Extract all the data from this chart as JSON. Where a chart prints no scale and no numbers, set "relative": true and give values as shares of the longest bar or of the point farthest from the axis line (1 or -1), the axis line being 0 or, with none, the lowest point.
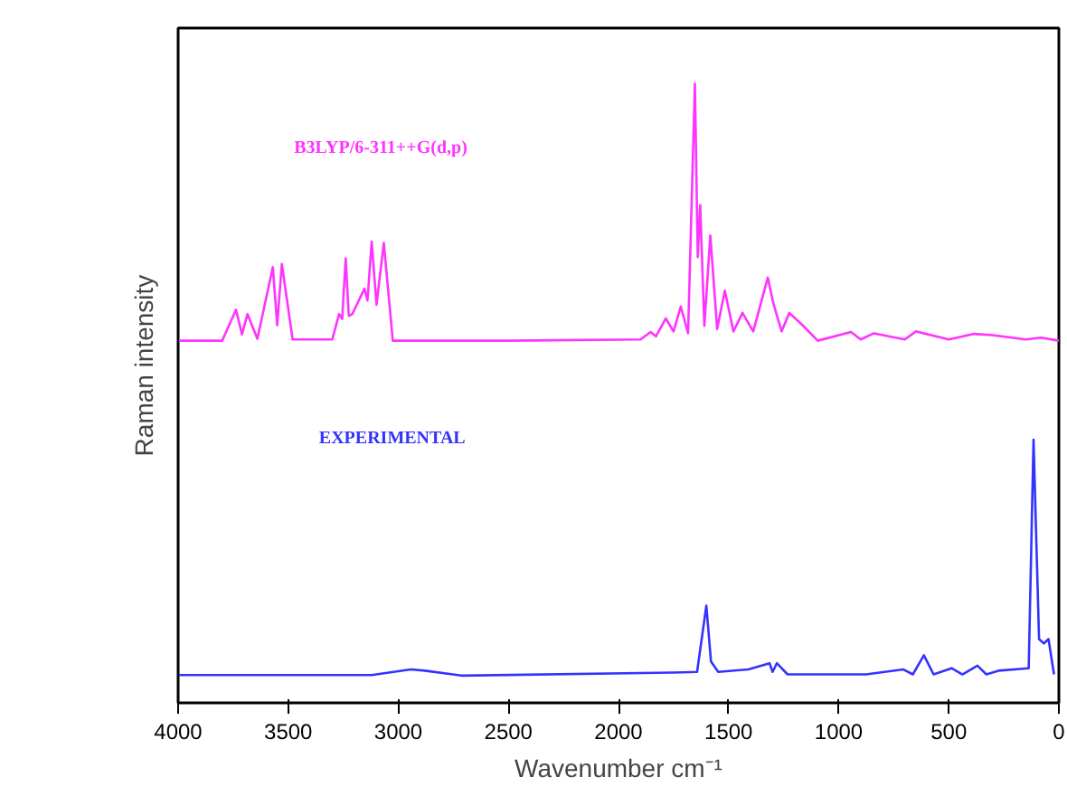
{
  "chart_data": {
    "type": "line",
    "xlabel": "Wavenumber cm⁻¹",
    "ylabel": "Raman intensity",
    "relative": true,
    "xlim": [
      4000,
      0
    ],
    "xticks": [
      4000,
      3500,
      3000,
      2500,
      2000,
      1500,
      1000,
      500,
      0
    ],
    "grid": false,
    "legend": false,
    "tick_labels": "x",
    "line_style": "solid",
    "marker": "none",
    "series": [
      {
        "name": "B3LYP/6-311++G(d,p)",
        "color": "#ff33ff",
        "x": [
          4000,
          3800,
          3737,
          3710,
          3685,
          3640,
          3570,
          3550,
          3529,
          3480,
          3300,
          3269,
          3255,
          3239,
          3225,
          3209,
          3154,
          3140,
          3121,
          3099,
          3066,
          3025,
          2500,
          1900,
          1854,
          1830,
          1785,
          1750,
          1717,
          1684,
          1653,
          1640,
          1629,
          1610,
          1583,
          1552,
          1517,
          1478,
          1437,
          1388,
          1322,
          1295,
          1259,
          1224,
          1164,
          1095,
          944,
          900,
          840,
          700,
          649,
          500,
          384,
          301,
          150,
          82,
          0
        ],
        "values": [
          0.585,
          0.585,
          0.635,
          0.595,
          0.628,
          0.588,
          0.704,
          0.61,
          0.709,
          0.587,
          0.587,
          0.628,
          0.62,
          0.718,
          0.625,
          0.628,
          0.669,
          0.65,
          0.745,
          0.643,
          0.743,
          0.585,
          0.585,
          0.587,
          0.599,
          0.592,
          0.621,
          0.6,
          0.64,
          0.597,
          1.0,
          0.72,
          0.804,
          0.609,
          0.755,
          0.604,
          0.666,
          0.6,
          0.63,
          0.6,
          0.687,
          0.643,
          0.6,
          0.63,
          0.61,
          0.585,
          0.599,
          0.587,
          0.597,
          0.587,
          0.6,
          0.587,
          0.596,
          0.594,
          0.587,
          0.59,
          0.585
        ]
      },
      {
        "name": "EXPERIMENTAL",
        "color": "#3333ff",
        "x": [
          4000,
          3121,
          2943,
          2880,
          2710,
          1752,
          1643,
          1601,
          1580,
          1547,
          1410,
          1314,
          1300,
          1281,
          1232,
          876,
          706,
          663,
          613,
          569,
          487,
          438,
          370,
          329,
          274,
          137,
          115,
          90,
          68,
          47,
          22
        ],
        "values": [
          0.045,
          0.045,
          0.054,
          0.052,
          0.044,
          0.049,
          0.05,
          0.157,
          0.067,
          0.05,
          0.054,
          0.064,
          0.05,
          0.064,
          0.046,
          0.046,
          0.054,
          0.046,
          0.077,
          0.046,
          0.056,
          0.046,
          0.06,
          0.046,
          0.052,
          0.056,
          0.425,
          0.103,
          0.096,
          0.103,
          0.046
        ]
      }
    ]
  }
}
